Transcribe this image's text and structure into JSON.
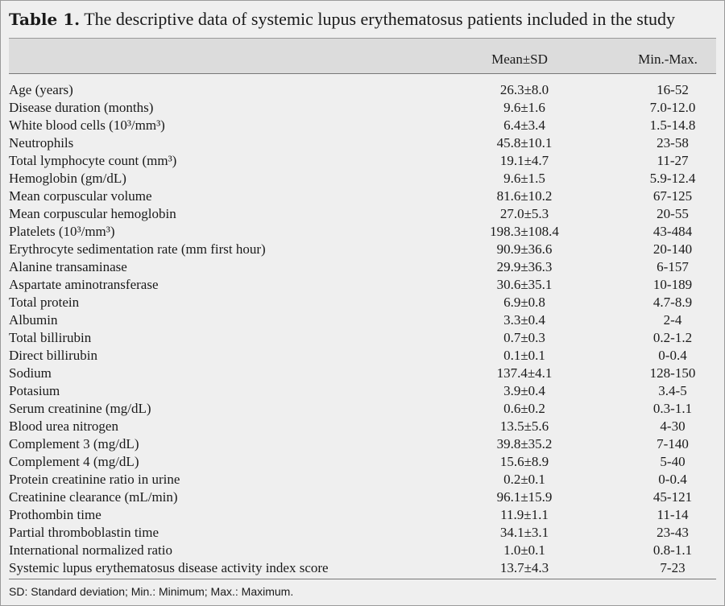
{
  "title": {
    "label": "Table 1.",
    "text": "The descriptive data of systemic lupus erythematosus patients included in the study"
  },
  "table": {
    "header": [
      "Mean±SD",
      "Min.-Max."
    ],
    "rows": [
      [
        "Age (years)",
        "26.3±8.0",
        "16-52"
      ],
      [
        "Disease duration (months)",
        "9.6±1.6",
        "7.0-12.0"
      ],
      [
        "White blood cells (10³/mm³)",
        "6.4±3.4",
        "1.5-14.8"
      ],
      [
        "Neutrophils",
        "45.8±10.1",
        "23-58"
      ],
      [
        "Total lymphocyte count (mm³)",
        "19.1±4.7",
        "11-27"
      ],
      [
        "Hemoglobin (gm/dL)",
        "9.6±1.5",
        "5.9-12.4"
      ],
      [
        "Mean corpuscular volume",
        "81.6±10.2",
        "67-125"
      ],
      [
        "Mean corpuscular hemoglobin",
        "27.0±5.3",
        "20-55"
      ],
      [
        "Platelets (10³/mm³)",
        "198.3±108.4",
        "43-484"
      ],
      [
        "Erythrocyte sedimentation rate (mm first hour)",
        "90.9±36.6",
        "20-140"
      ],
      [
        "Alanine transaminase",
        "29.9±36.3",
        "6-157"
      ],
      [
        "Aspartate aminotransferase",
        "30.6±35.1",
        "10-189"
      ],
      [
        "Total protein",
        "6.9±0.8",
        "4.7-8.9"
      ],
      [
        "Albumin",
        "3.3±0.4",
        "2-4"
      ],
      [
        "Total billirubin",
        "0.7±0.3",
        "0.2-1.2"
      ],
      [
        "Direct billirubin",
        "0.1±0.1",
        "0-0.4"
      ],
      [
        "Sodium",
        "137.4±4.1",
        "128-150"
      ],
      [
        "Potasium",
        "3.9±0.4",
        "3.4-5"
      ],
      [
        "Serum creatinine (mg/dL)",
        "0.6±0.2",
        "0.3-1.1"
      ],
      [
        "Blood urea nitrogen",
        "13.5±5.6",
        "4-30"
      ],
      [
        "Complement 3 (mg/dL)",
        "39.8±35.2",
        "7-140"
      ],
      [
        "Complement 4 (mg/dL)",
        "15.6±8.9",
        "5-40"
      ],
      [
        "Protein creatinine ratio in urine",
        "0.2±0.1",
        "0-0.4"
      ],
      [
        "Creatinine clearance (mL/min)",
        "96.1±15.9",
        "45-121"
      ],
      [
        "Prothombin time",
        "11.9±1.1",
        "11-14"
      ],
      [
        "Partial thromboblastin time",
        "34.1±3.1",
        "23-43"
      ],
      [
        "International normalized ratio",
        "1.0±0.1",
        "0.8-1.1"
      ],
      [
        "Systemic lupus erythematosus disease activity index score",
        "13.7±4.3",
        "7-23"
      ]
    ]
  },
  "footnote": "SD: Standard deviation; Min.: Minimum; Max.: Maximum."
}
